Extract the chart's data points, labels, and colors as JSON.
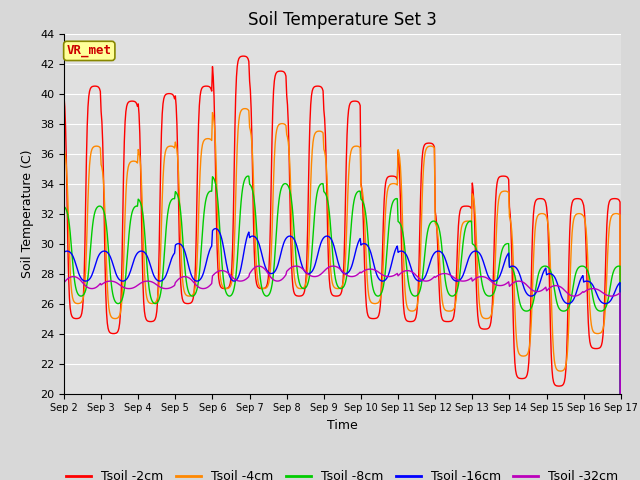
{
  "title": "Soil Temperature Set 3",
  "xlabel": "Time",
  "ylabel": "Soil Temperature (C)",
  "ylim": [
    20,
    44
  ],
  "yticks": [
    20,
    22,
    24,
    26,
    28,
    30,
    32,
    34,
    36,
    38,
    40,
    42,
    44
  ],
  "x_tick_labels": [
    "Sep 2",
    "Sep 3",
    "Sep 4",
    "Sep 5",
    "Sep 6",
    "Sep 7",
    "Sep 8",
    "Sep 9",
    "Sep 10",
    "Sep 11",
    "Sep 12",
    "Sep 13",
    "Sep 14",
    "Sep 15",
    "Sep 16",
    "Sep 17"
  ],
  "series_colors": {
    "Tsoil -2cm": "#ff0000",
    "Tsoil -4cm": "#ff8800",
    "Tsoil -8cm": "#00cc00",
    "Tsoil -16cm": "#0000ff",
    "Tsoil -32cm": "#bb00bb"
  },
  "annotation_text": "VR_met",
  "annotation_color": "#cc0000",
  "annotation_bg": "#ffff99",
  "background_color": "#e0e0e0",
  "grid_color": "#ffffff",
  "title_fontsize": 12,
  "axis_fontsize": 9,
  "tick_fontsize": 8,
  "legend_fontsize": 9,
  "figsize": [
    6.4,
    4.8
  ],
  "dpi": 100
}
